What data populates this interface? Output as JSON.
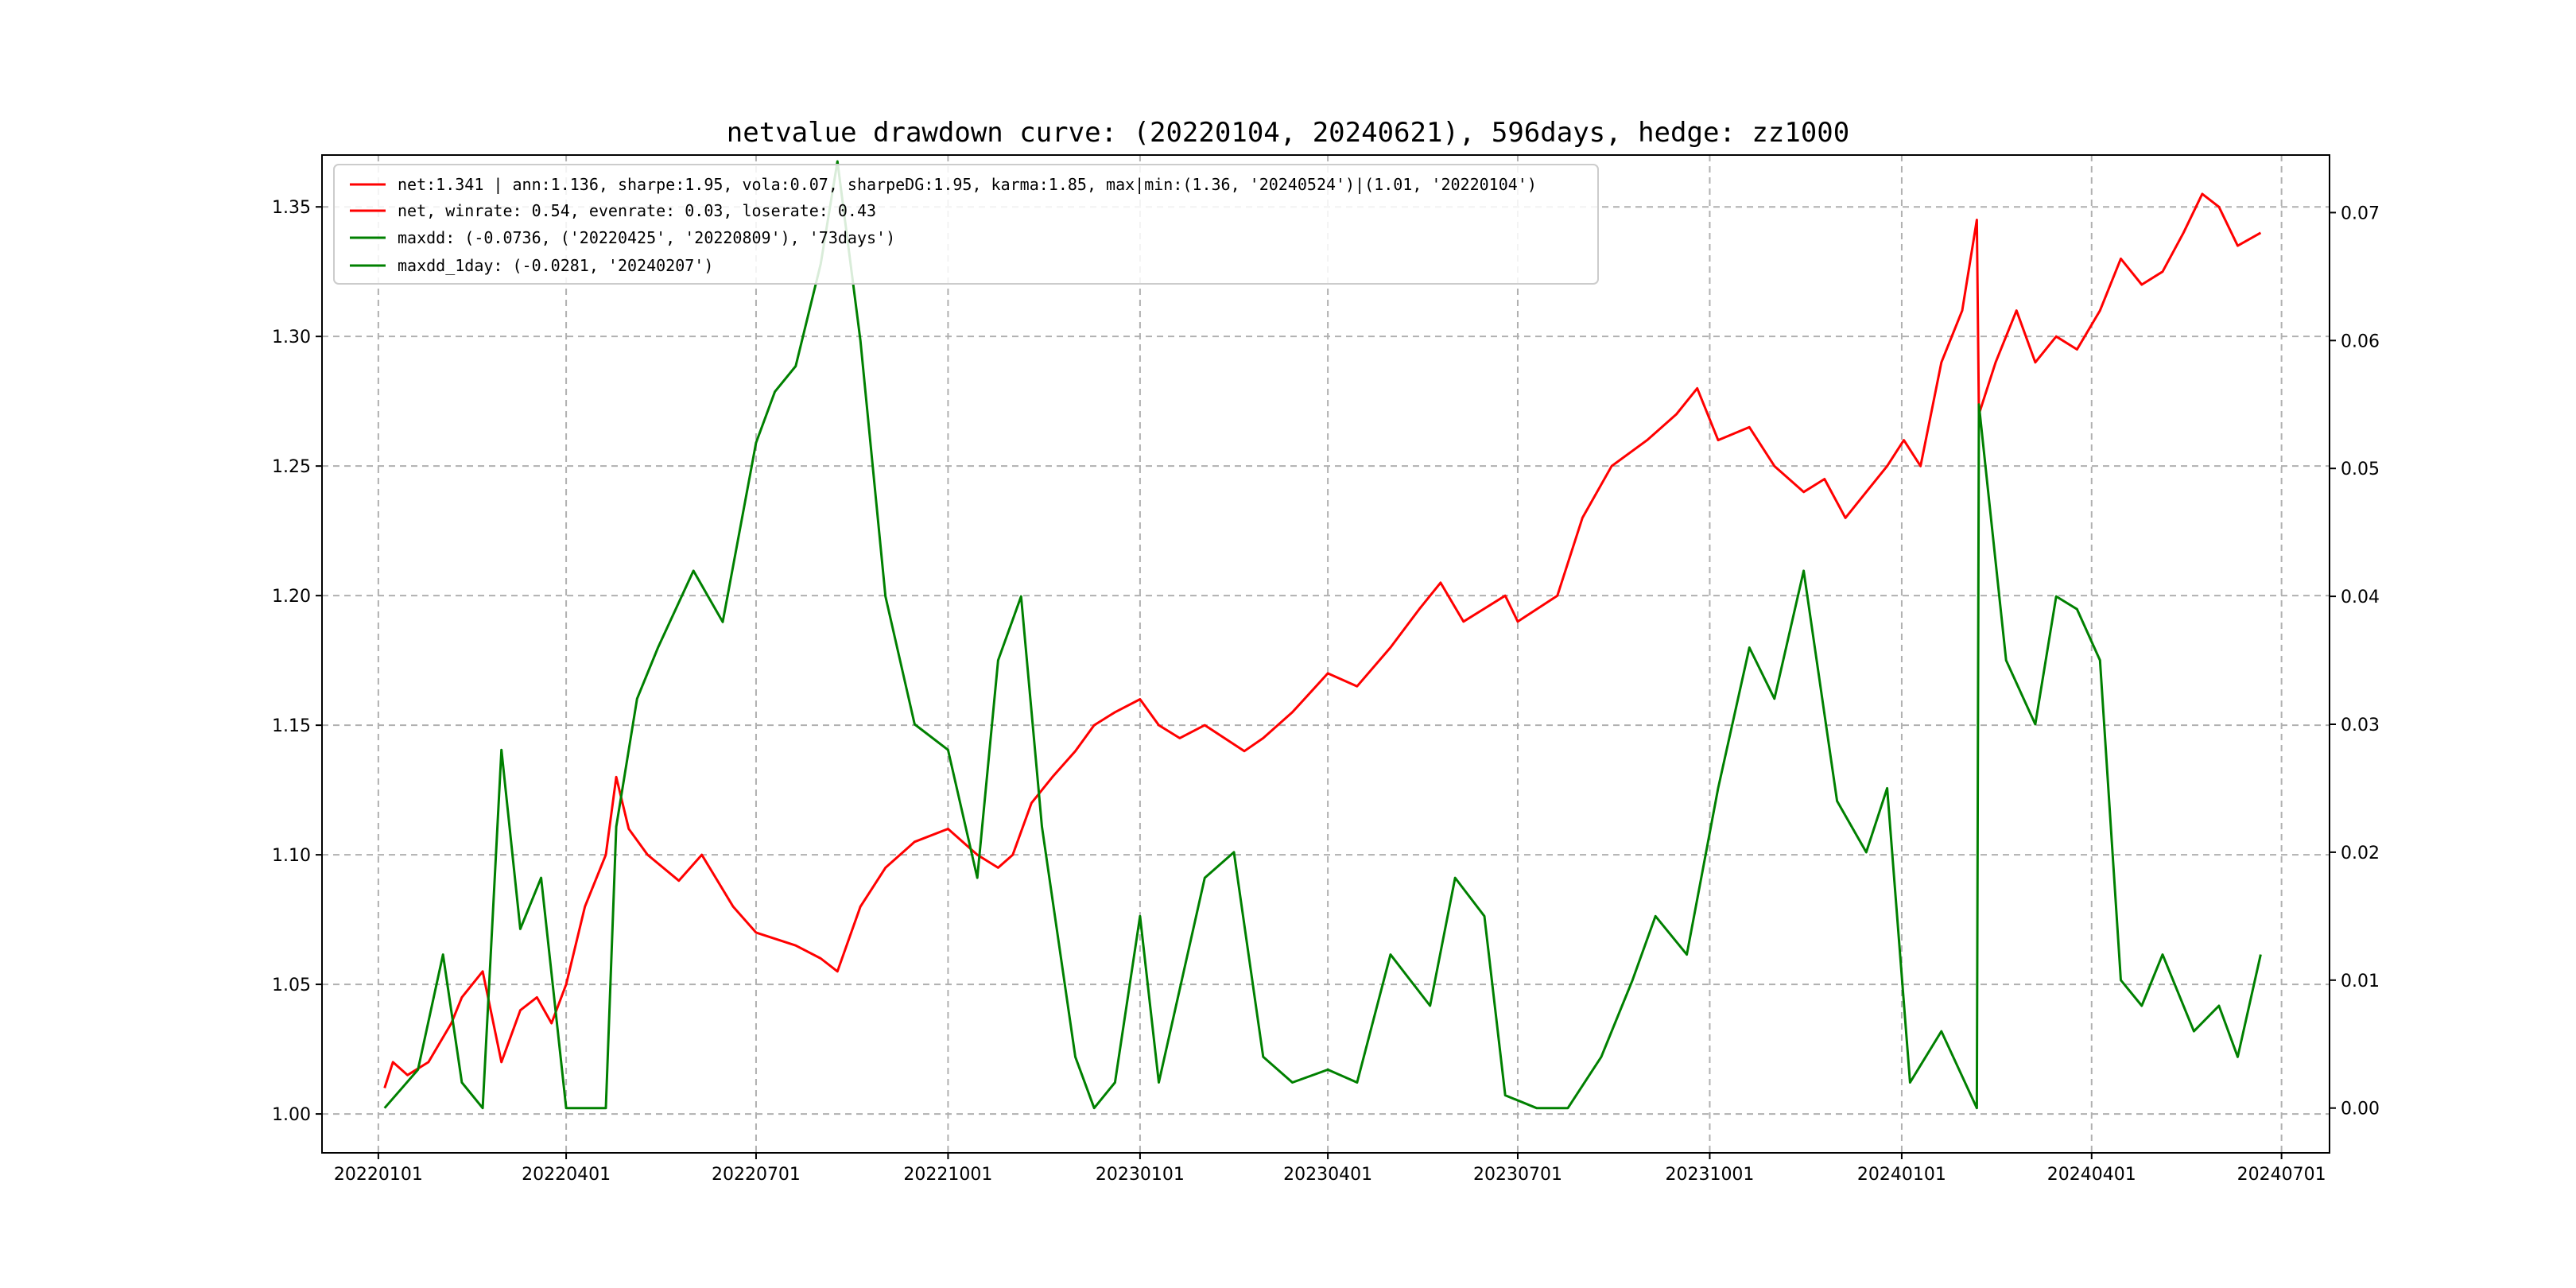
{
  "chart_data": {
    "type": "line",
    "title": "netvalue drawdown curve: (20220104, 20240621), 596days, hedge: zz1000",
    "xlabel": "",
    "ylabel": "",
    "x_tick_labels": [
      "20220101",
      "20220401",
      "20220701",
      "20221001",
      "20230101",
      "20230401",
      "20230701",
      "20231001",
      "20240101",
      "20240401",
      "20240701"
    ],
    "left_axis": {
      "ylim": [
        0.985,
        1.37
      ],
      "ticks": [
        "1.00",
        "1.05",
        "1.10",
        "1.15",
        "1.20",
        "1.25",
        "1.30",
        "1.35"
      ]
    },
    "right_axis": {
      "ylim": [
        -0.0035,
        0.0745
      ],
      "ticks": [
        "0.00",
        "0.01",
        "0.02",
        "0.03",
        "0.04",
        "0.05",
        "0.06",
        "0.07"
      ]
    },
    "grid": true,
    "legend_position": "upper-left",
    "legend": [
      {
        "label": "net:1.341 | ann:1.136, sharpe:1.95, vola:0.07, sharpeDG:1.95, karma:1.85, max|min:(1.36, '20240524')|(1.01, '20220104')",
        "color": "#ff0000"
      },
      {
        "label": "net, winrate: 0.54, evenrate: 0.03, loserate: 0.43",
        "color": "#ff0000"
      },
      {
        "label": "maxdd: (-0.0736, ('20220425', '20220809'), '73days')",
        "color": "#008000"
      },
      {
        "label": "maxdd_1day: (-0.0281, '20240207')",
        "color": "#008000"
      }
    ],
    "series": [
      {
        "axis": "left",
        "color": "#ff0000",
        "x": [
          "2022-01-04",
          "2022-01-08",
          "2022-01-15",
          "2022-01-25",
          "2022-02-05",
          "2022-02-10",
          "2022-02-20",
          "2022-03-01",
          "2022-03-10",
          "2022-03-18",
          "2022-03-25",
          "2022-04-01",
          "2022-04-10",
          "2022-04-20",
          "2022-04-25",
          "2022-05-01",
          "2022-05-10",
          "2022-05-25",
          "2022-06-05",
          "2022-06-20",
          "2022-07-01",
          "2022-07-20",
          "2022-08-01",
          "2022-08-09",
          "2022-08-20",
          "2022-09-01",
          "2022-09-15",
          "2022-10-01",
          "2022-10-15",
          "2022-10-25",
          "2022-11-01",
          "2022-11-10",
          "2022-11-20",
          "2022-12-01",
          "2022-12-10",
          "2022-12-20",
          "2023-01-01",
          "2023-01-10",
          "2023-01-20",
          "2023-02-01",
          "2023-02-20",
          "2023-03-01",
          "2023-03-15",
          "2023-04-01",
          "2023-04-15",
          "2023-05-01",
          "2023-05-15",
          "2023-05-25",
          "2023-06-05",
          "2023-06-15",
          "2023-06-25",
          "2023-07-01",
          "2023-07-20",
          "2023-08-01",
          "2023-08-15",
          "2023-09-01",
          "2023-09-15",
          "2023-09-25",
          "2023-10-05",
          "2023-10-20",
          "2023-11-01",
          "2023-11-15",
          "2023-11-25",
          "2023-12-05",
          "2023-12-15",
          "2023-12-25",
          "2024-01-02",
          "2024-01-10",
          "2024-01-20",
          "2024-01-30",
          "2024-02-06",
          "2024-02-07",
          "2024-02-15",
          "2024-02-25",
          "2024-03-05",
          "2024-03-15",
          "2024-03-25",
          "2024-04-05",
          "2024-04-15",
          "2024-04-25",
          "2024-05-05",
          "2024-05-15",
          "2024-05-24",
          "2024-06-01",
          "2024-06-10",
          "2024-06-21"
        ],
        "y": [
          1.01,
          1.02,
          1.015,
          1.02,
          1.035,
          1.045,
          1.055,
          1.02,
          1.04,
          1.045,
          1.035,
          1.05,
          1.08,
          1.1,
          1.13,
          1.11,
          1.1,
          1.09,
          1.1,
          1.08,
          1.07,
          1.065,
          1.06,
          1.055,
          1.08,
          1.095,
          1.105,
          1.11,
          1.1,
          1.095,
          1.1,
          1.12,
          1.13,
          1.14,
          1.15,
          1.155,
          1.16,
          1.15,
          1.145,
          1.15,
          1.14,
          1.145,
          1.155,
          1.17,
          1.165,
          1.18,
          1.195,
          1.205,
          1.19,
          1.195,
          1.2,
          1.19,
          1.2,
          1.23,
          1.25,
          1.26,
          1.27,
          1.28,
          1.26,
          1.265,
          1.25,
          1.24,
          1.245,
          1.23,
          1.24,
          1.25,
          1.26,
          1.25,
          1.29,
          1.31,
          1.345,
          1.27,
          1.29,
          1.31,
          1.29,
          1.3,
          1.295,
          1.31,
          1.33,
          1.32,
          1.325,
          1.34,
          1.355,
          1.35,
          1.335,
          1.34
        ]
      },
      {
        "axis": "right",
        "color": "#008000",
        "x": [
          "2022-01-04",
          "2022-01-20",
          "2022-02-01",
          "2022-02-10",
          "2022-02-20",
          "2022-03-01",
          "2022-03-10",
          "2022-03-20",
          "2022-04-01",
          "2022-04-10",
          "2022-04-20",
          "2022-04-25",
          "2022-05-05",
          "2022-05-15",
          "2022-06-01",
          "2022-06-15",
          "2022-07-01",
          "2022-07-10",
          "2022-07-20",
          "2022-08-01",
          "2022-08-09",
          "2022-08-20",
          "2022-09-01",
          "2022-09-15",
          "2022-10-01",
          "2022-10-15",
          "2022-10-25",
          "2022-11-05",
          "2022-11-15",
          "2022-12-01",
          "2022-12-10",
          "2022-12-20",
          "2023-01-01",
          "2023-01-10",
          "2023-02-01",
          "2023-02-15",
          "2023-03-01",
          "2023-03-15",
          "2023-04-01",
          "2023-04-15",
          "2023-05-01",
          "2023-05-20",
          "2023-06-01",
          "2023-06-15",
          "2023-06-25",
          "2023-07-10",
          "2023-07-25",
          "2023-08-10",
          "2023-08-25",
          "2023-09-05",
          "2023-09-20",
          "2023-10-05",
          "2023-10-20",
          "2023-11-01",
          "2023-11-15",
          "2023-12-01",
          "2023-12-15",
          "2023-12-25",
          "2024-01-05",
          "2024-01-20",
          "2024-02-06",
          "2024-02-07",
          "2024-02-20",
          "2024-03-05",
          "2024-03-15",
          "2024-03-25",
          "2024-04-05",
          "2024-04-15",
          "2024-04-25",
          "2024-05-05",
          "2024-05-20",
          "2024-06-01",
          "2024-06-10",
          "2024-06-21"
        ],
        "y": [
          0,
          0.003,
          0.012,
          0.002,
          0,
          0.028,
          0.014,
          0.018,
          0,
          0,
          0,
          0.022,
          0.032,
          0.036,
          0.042,
          0.038,
          0.052,
          0.056,
          0.058,
          0.066,
          0.074,
          0.06,
          0.04,
          0.03,
          0.028,
          0.018,
          0.035,
          0.04,
          0.022,
          0.004,
          0,
          0.002,
          0.015,
          0.002,
          0.018,
          0.02,
          0.004,
          0.002,
          0.003,
          0.002,
          0.012,
          0.008,
          0.018,
          0.015,
          0.001,
          0,
          0,
          0.004,
          0.01,
          0.015,
          0.012,
          0.025,
          0.036,
          0.032,
          0.042,
          0.024,
          0.02,
          0.025,
          0.002,
          0.006,
          0,
          0.055,
          0.035,
          0.03,
          0.04,
          0.039,
          0.035,
          0.01,
          0.008,
          0.012,
          0.006,
          0.008,
          0.004,
          0.012
        ]
      }
    ]
  }
}
